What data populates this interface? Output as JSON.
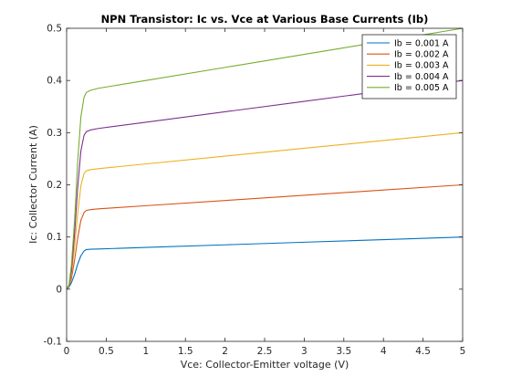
{
  "chart_data": {
    "type": "line",
    "title": "NPN Transistor: Ic vs. Vce at Various Base Currents (Ib)",
    "xlabel": "Vce: Collector-Emitter voltage (V)",
    "ylabel": "Ic: Collector Current (A)",
    "xlim": [
      0,
      5
    ],
    "ylim": [
      -0.1,
      0.5
    ],
    "xticks": [
      0,
      0.5,
      1,
      1.5,
      2,
      2.5,
      3,
      3.5,
      4,
      4.5,
      5
    ],
    "xtick_labels": [
      "0",
      "0.5",
      "1",
      "1.5",
      "2",
      "2.5",
      "3",
      "3.5",
      "4",
      "4.5",
      "5"
    ],
    "yticks": [
      -0.1,
      0,
      0.1,
      0.2,
      0.3,
      0.4,
      0.5
    ],
    "ytick_labels": [
      "-0.1",
      "0",
      "0.1",
      "0.2",
      "0.3",
      "0.4",
      "0.5"
    ],
    "grid": false,
    "legend_position": "top-right",
    "series": [
      {
        "name": "Ib = 0.001 A",
        "color": "#0072bd",
        "x": [
          0,
          0.03,
          0.06,
          0.1,
          0.14,
          0.18,
          0.22,
          0.25,
          0.3,
          0.4,
          0.6,
          1,
          2,
          3,
          4,
          5
        ],
        "y": [
          0,
          0.004,
          0.012,
          0.028,
          0.048,
          0.064,
          0.073,
          0.076,
          0.0765,
          0.077,
          0.078,
          0.08,
          0.085,
          0.09,
          0.095,
          0.1
        ]
      },
      {
        "name": "Ib = 0.002 A",
        "color": "#d95319",
        "x": [
          0,
          0.03,
          0.06,
          0.1,
          0.14,
          0.18,
          0.22,
          0.25,
          0.3,
          0.4,
          0.6,
          1,
          2,
          3,
          4,
          5
        ],
        "y": [
          0,
          0.005,
          0.02,
          0.055,
          0.098,
          0.132,
          0.147,
          0.151,
          0.1525,
          0.154,
          0.156,
          0.16,
          0.17,
          0.18,
          0.19,
          0.2
        ]
      },
      {
        "name": "Ib = 0.003 A",
        "color": "#edb120",
        "x": [
          0,
          0.03,
          0.06,
          0.1,
          0.14,
          0.18,
          0.22,
          0.25,
          0.3,
          0.4,
          0.6,
          1,
          2,
          3,
          4,
          5
        ],
        "y": [
          0,
          0.006,
          0.028,
          0.08,
          0.145,
          0.198,
          0.222,
          0.227,
          0.229,
          0.231,
          0.234,
          0.24,
          0.255,
          0.27,
          0.285,
          0.3
        ]
      },
      {
        "name": "Ib = 0.004 A",
        "color": "#7e2f8e",
        "x": [
          0,
          0.03,
          0.06,
          0.1,
          0.14,
          0.18,
          0.22,
          0.25,
          0.3,
          0.4,
          0.6,
          1,
          2,
          3,
          4,
          5
        ],
        "y": [
          0,
          0.007,
          0.035,
          0.105,
          0.195,
          0.265,
          0.295,
          0.302,
          0.305,
          0.308,
          0.312,
          0.32,
          0.34,
          0.36,
          0.38,
          0.4
        ]
      },
      {
        "name": "Ib = 0.005 A",
        "color": "#77ac30",
        "x": [
          0,
          0.03,
          0.06,
          0.1,
          0.14,
          0.18,
          0.22,
          0.25,
          0.3,
          0.4,
          0.6,
          1,
          2,
          3,
          4,
          5
        ],
        "y": [
          0,
          0.008,
          0.045,
          0.13,
          0.245,
          0.33,
          0.368,
          0.377,
          0.381,
          0.385,
          0.39,
          0.4,
          0.425,
          0.45,
          0.475,
          0.5
        ]
      }
    ]
  }
}
